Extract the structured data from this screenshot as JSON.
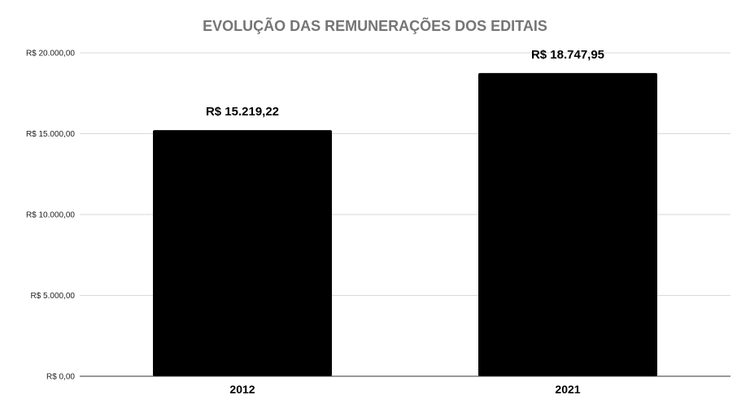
{
  "chart_data": {
    "type": "bar",
    "title": "EVOLUÇÃO DAS REMUNERAÇÕES DOS EDITAIS",
    "xlabel": "",
    "ylabel": "",
    "categories": [
      "2012",
      "2021"
    ],
    "values": [
      15219.22,
      18747.95
    ],
    "data_labels": [
      "R$ 15.219,22",
      "R$ 18.747,95"
    ],
    "ylim": [
      0,
      20000
    ],
    "yticks": [
      0,
      5000,
      10000,
      15000,
      20000
    ],
    "ytick_labels": [
      "R$ 0,00",
      "R$ 5.000,00",
      "R$ 10.000,00",
      "R$ 15.000,00",
      "R$ 20.000,00"
    ],
    "grid": true,
    "legend": "none",
    "colors": {
      "bar": "#000000",
      "title": "#757575",
      "grid": "#d9d9d9",
      "axis": "#333333"
    }
  }
}
